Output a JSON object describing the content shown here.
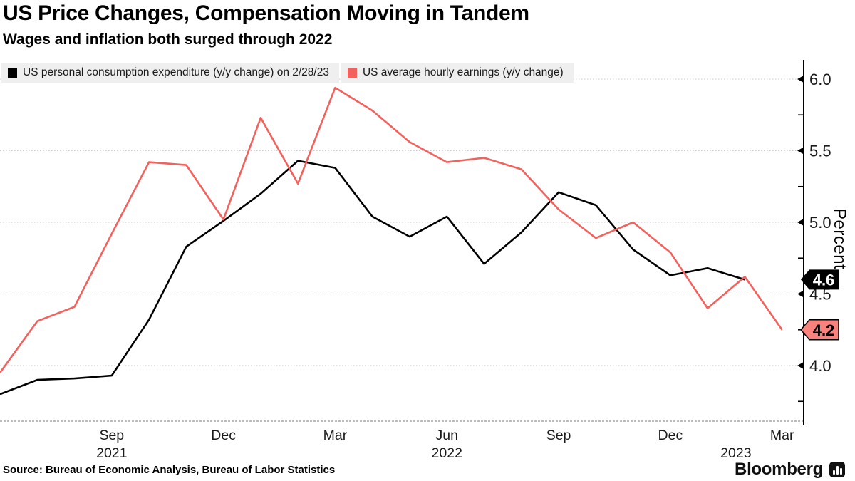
{
  "header": {
    "title": "US Price Changes, Compensation Moving in Tandem",
    "subtitle": "Wages and inflation both surged through 2022"
  },
  "legend": {
    "items": [
      {
        "label": "US personal consumption expenditure (y/y change) on 2/28/23",
        "color": "#000000"
      },
      {
        "label": "US average hourly earnings (y/y change)",
        "color": "#f4615c"
      }
    ]
  },
  "chart_data": {
    "type": "line",
    "x": [
      "Jun 2021",
      "Jul 2021",
      "Aug 2021",
      "Sep 2021",
      "Oct 2021",
      "Nov 2021",
      "Dec 2021",
      "Jan 2022",
      "Feb 2022",
      "Mar 2022",
      "Apr 2022",
      "May 2022",
      "Jun 2022",
      "Jul 2022",
      "Aug 2022",
      "Sep 2022",
      "Oct 2022",
      "Nov 2022",
      "Dec 2022",
      "Jan 2023",
      "Feb 2023",
      "Mar 2023"
    ],
    "series": [
      {
        "id": "pce",
        "name": "US personal consumption expenditure (y/y change)",
        "color": "#000000",
        "values": [
          3.8,
          3.9,
          3.91,
          3.93,
          4.32,
          4.83,
          5.01,
          5.2,
          5.43,
          5.38,
          5.04,
          4.9,
          5.04,
          4.71,
          4.93,
          5.21,
          5.12,
          4.81,
          4.63,
          4.68,
          4.6
        ],
        "end_label": "4.6",
        "end_tag_fill": "#000000",
        "end_tag_text": "#ffffff",
        "end_tag_stroke": "none"
      },
      {
        "id": "ahe",
        "name": "US average hourly earnings (y/y change)",
        "color": "#f4615c",
        "values": [
          3.95,
          4.31,
          4.41,
          4.92,
          5.42,
          5.4,
          5.02,
          5.73,
          5.27,
          5.94,
          5.78,
          5.56,
          5.42,
          5.45,
          5.37,
          5.09,
          4.89,
          5.0,
          4.79,
          4.4,
          4.62,
          4.25
        ],
        "end_label": "4.2",
        "end_tag_fill": "#f9827c",
        "end_tag_text": "#000000",
        "end_tag_stroke": "#000000"
      }
    ],
    "title": "US Price Changes, Compensation Moving in Tandem",
    "xlabel": "",
    "ylabel": "Percent",
    "ylim": [
      3.62,
      6.12
    ],
    "yticks": [
      4.0,
      4.5,
      5.0,
      5.5,
      6.0
    ],
    "yticks_minor": [
      3.75,
      4.25,
      4.75,
      5.25,
      5.75
    ],
    "grid": "dotted horizontal",
    "legend_position": "top",
    "xticks": [
      {
        "label": "Sep",
        "index": 3
      },
      {
        "label": "Dec",
        "index": 6
      },
      {
        "label": "Mar",
        "index": 9
      },
      {
        "label": "Jun",
        "index": 12
      },
      {
        "label": "Sep",
        "index": 15
      },
      {
        "label": "Dec",
        "index": 18
      },
      {
        "label": "Mar",
        "index": 21
      }
    ],
    "year_labels": [
      {
        "label": "2021",
        "index": 3
      },
      {
        "label": "2022",
        "index": 12
      },
      {
        "label": "2023",
        "index": 19.76
      }
    ]
  },
  "footer": {
    "source": "Source: Bureau of Economic Analysis, Bureau of Labor Statistics",
    "brand": "Bloomberg"
  }
}
